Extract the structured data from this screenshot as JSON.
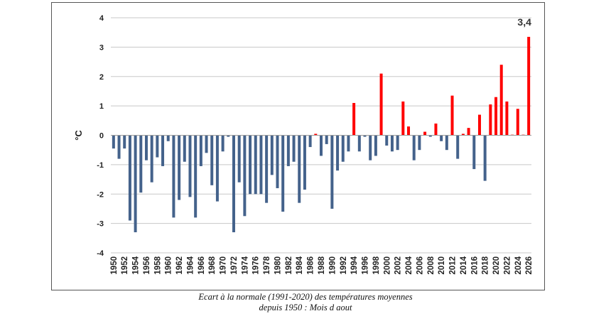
{
  "chart_data": {
    "type": "bar",
    "ylabel": "°C",
    "ylim": [
      -4,
      4
    ],
    "yticks": [
      -4,
      -3,
      -2,
      -1,
      0,
      1,
      2,
      3,
      4
    ],
    "x": [
      1950,
      1951,
      1952,
      1953,
      1954,
      1955,
      1956,
      1957,
      1958,
      1959,
      1960,
      1961,
      1962,
      1963,
      1964,
      1965,
      1966,
      1967,
      1968,
      1969,
      1970,
      1971,
      1972,
      1973,
      1974,
      1975,
      1976,
      1977,
      1978,
      1979,
      1980,
      1981,
      1982,
      1983,
      1984,
      1985,
      1986,
      1987,
      1988,
      1989,
      1990,
      1991,
      1992,
      1993,
      1994,
      1995,
      1996,
      1997,
      1998,
      1999,
      2000,
      2001,
      2002,
      2003,
      2004,
      2005,
      2006,
      2007,
      2008,
      2009,
      2010,
      2011,
      2012,
      2013,
      2014,
      2015,
      2016,
      2017,
      2018,
      2019,
      2020,
      2021,
      2022,
      2023,
      2024,
      2025,
      2026
    ],
    "xticks": [
      1950,
      1952,
      1954,
      1956,
      1958,
      1960,
      1962,
      1964,
      1966,
      1968,
      1970,
      1972,
      1974,
      1976,
      1978,
      1980,
      1982,
      1984,
      1986,
      1988,
      1990,
      1992,
      1994,
      1996,
      1998,
      2000,
      2002,
      2004,
      2006,
      2008,
      2010,
      2012,
      2014,
      2016,
      2018,
      2020,
      2022,
      2024,
      2026
    ],
    "values": [
      -0.45,
      -0.8,
      -0.45,
      -2.9,
      -3.3,
      -1.95,
      -0.85,
      -1.6,
      -0.75,
      -1.05,
      -0.2,
      -2.8,
      -2.2,
      -0.9,
      -2.1,
      -2.8,
      -1.05,
      -0.6,
      -1.7,
      -2.25,
      -0.55,
      -0.05,
      -3.3,
      -1.6,
      -2.75,
      -2.0,
      -2.0,
      -2.0,
      -2.3,
      -1.35,
      -1.8,
      -2.6,
      -1.05,
      -0.9,
      -2.3,
      -1.85,
      -0.4,
      0.05,
      -0.7,
      -0.3,
      -2.5,
      -1.2,
      -0.9,
      -0.55,
      1.1,
      -0.55,
      -0.05,
      -0.85,
      -0.7,
      2.1,
      -0.35,
      -0.55,
      -0.5,
      1.15,
      0.3,
      -0.85,
      -0.5,
      0.12,
      -0.05,
      0.4,
      -0.2,
      -0.5,
      1.35,
      -0.8,
      0.05,
      0.25,
      -1.15,
      0.7,
      -1.55,
      1.05,
      1.3,
      2.4,
      1.15,
      0.02,
      0.9,
      0.02,
      3.35
    ],
    "positive_color": "#ff0000",
    "negative_color": "#44628b",
    "grid": true,
    "annotations": [
      {
        "x": 2026,
        "text": "3,4"
      }
    ]
  },
  "caption": {
    "line1": "Ecart à la normale (1991-2020) des températures moyennes",
    "line2": "depuis 1950 : Mois d aout"
  }
}
